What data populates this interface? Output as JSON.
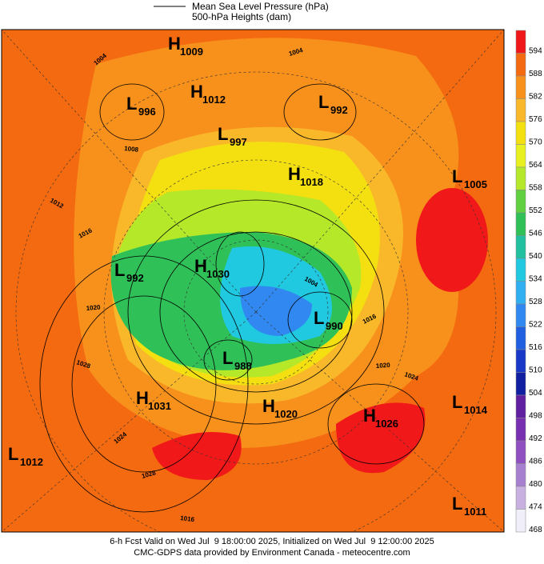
{
  "legend": {
    "items": [
      "Mean Sea Level Pressure (hPa)",
      "500-hPa Heights (dam)"
    ]
  },
  "colorbar": {
    "ticks": [
      {
        "value": 594,
        "color": "#f01818"
      },
      {
        "value": 588,
        "color": "#f46a10"
      },
      {
        "value": 582,
        "color": "#f8901c"
      },
      {
        "value": 576,
        "color": "#f8b82a"
      },
      {
        "value": 570,
        "color": "#f4e010"
      },
      {
        "value": 564,
        "color": "#e8f020"
      },
      {
        "value": 558,
        "color": "#b4e828"
      },
      {
        "value": 552,
        "color": "#60d040"
      },
      {
        "value": 546,
        "color": "#30c058"
      },
      {
        "value": 540,
        "color": "#20c0a0"
      },
      {
        "value": 534,
        "color": "#20c8e0"
      },
      {
        "value": 528,
        "color": "#30b0f0"
      },
      {
        "value": 522,
        "color": "#3088f0"
      },
      {
        "value": 516,
        "color": "#2060e0"
      },
      {
        "value": 510,
        "color": "#1838c8"
      },
      {
        "value": 504,
        "color": "#1020a0"
      },
      {
        "value": 498,
        "color": "#6020a0"
      },
      {
        "value": 492,
        "color": "#7830b0"
      },
      {
        "value": 486,
        "color": "#9050c0"
      },
      {
        "value": 480,
        "color": "#a880d0"
      },
      {
        "value": 474,
        "color": "#c8b0e0"
      },
      {
        "value": 468,
        "color": "#f0eef8"
      }
    ]
  },
  "systems": [
    {
      "letter": "H",
      "pressure": 1009
    },
    {
      "letter": "H",
      "pressure": 1012
    },
    {
      "letter": "L",
      "pressure": 996
    },
    {
      "letter": "L",
      "pressure": 992
    },
    {
      "letter": "L",
      "pressure": 997
    },
    {
      "letter": "H",
      "pressure": 1018
    },
    {
      "letter": "L",
      "pressure": 1005
    },
    {
      "letter": "L",
      "pressure": 992
    },
    {
      "letter": "H",
      "pressure": 1030
    },
    {
      "letter": "L",
      "pressure": 990
    },
    {
      "letter": "L",
      "pressure": 988
    },
    {
      "letter": "H",
      "pressure": 1031
    },
    {
      "letter": "H",
      "pressure": 1020
    },
    {
      "letter": "H",
      "pressure": 1026
    },
    {
      "letter": "L",
      "pressure": 1014
    },
    {
      "letter": "L",
      "pressure": 1012
    },
    {
      "letter": "L",
      "pressure": 1011
    }
  ],
  "contour_labels": [
    1004,
    1004,
    1008,
    1012,
    1016,
    1020,
    1028,
    1024,
    1028,
    1016,
    1004,
    1016,
    1020,
    1024
  ],
  "footer": {
    "line1": "6-h Fcst Valid on Wed Jul  9 18:00:00 2025, Initialized on Wed Jul  9 12:00:00 2025",
    "line2": "CMC-GDPS data provided by Environment Canada - meteocentre.com"
  }
}
